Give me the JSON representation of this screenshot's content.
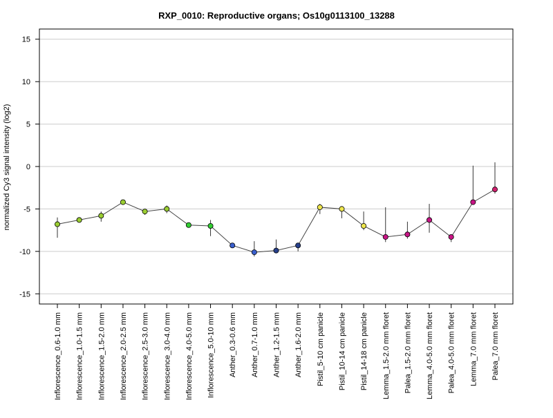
{
  "chart_data": {
    "type": "line",
    "title": "RXP_0010: Reproductive organs; Os10g0113100_13288",
    "xlabel": "",
    "ylabel": "normalized Cy3 signal intensity (log2)",
    "ylim": [
      -16.2,
      16.2
    ],
    "yticks": [
      15,
      10,
      5,
      0,
      -5,
      -10,
      -15
    ],
    "ytick_labels": [
      "15",
      "10",
      "5",
      "0",
      "-5",
      "-10",
      "-15"
    ],
    "grid": true,
    "legend": "none",
    "categories": [
      "Inflorescence_0.6-1.0 mm",
      "Inflorescence_1.0-1.5 mm",
      "Inflorescence_1.5-2.0 mm",
      "Inflorescence_2.0-2.5 mm",
      "Inflorescence_2.5-3.0 mm",
      "Inflorescence_3.0-4.0 mm",
      "Inflorescence_4.0-5.0 mm",
      "Inflorescence_5.0-10 mm",
      "Anther_0.3-0.6 mm",
      "Anther_0.7-1.0 mm",
      "Anther_1.2-1.5 mm",
      "Anther_1.6-2.0 mm",
      "Pistil_5-10 cm panicle",
      "Pistil_10-14 cm panicle",
      "Pistil_14-18 cm panicle",
      "Lemma_1.5-2.0 mm floret",
      "Palea_1.5-2.0 mm floret",
      "Lemma_4.0-5.0 mm floret",
      "Palea_4.0-5.0 mm floret",
      "Lemma_7.0 mm floret",
      "Palea_7.0 mm floret"
    ],
    "series": [
      {
        "values": [
          -6.8,
          -6.3,
          -5.8,
          -4.2,
          -5.3,
          -5.0,
          -6.9,
          -7.0,
          -9.3,
          -10.1,
          -9.9,
          -9.3,
          -4.8,
          -5.0,
          -7.0,
          -8.3,
          -8.0,
          -6.3,
          -8.3,
          -4.2,
          -2.7
        ],
        "err_low": [
          -8.4,
          -6.6,
          -6.5,
          -4.4,
          -5.7,
          -5.5,
          -7.0,
          -8.2,
          -9.4,
          -10.6,
          -10.1,
          -10.0,
          -5.6,
          -6.1,
          -7.5,
          -8.9,
          -8.5,
          -7.8,
          -8.9,
          -4.2,
          -3.2
        ],
        "err_high": [
          -6.0,
          -6.0,
          -5.3,
          -4.1,
          -5.0,
          -4.6,
          -6.8,
          -6.3,
          -9.2,
          -8.8,
          -8.6,
          -9.1,
          -4.4,
          -4.8,
          -5.3,
          -4.8,
          -6.5,
          -4.4,
          -8.2,
          0.1,
          0.5
        ],
        "point_colors": [
          "#9acd32",
          "#9acd32",
          "#9acd32",
          "#9acd32",
          "#9acd32",
          "#9acd32",
          "#32cd32",
          "#32cd32",
          "#3a5fcd",
          "#3a5fcd",
          "#27408b",
          "#27408b",
          "#eee64d",
          "#eee64d",
          "#eee64d",
          "#c71585",
          "#c71585",
          "#c71585",
          "#c71585",
          "#c71585",
          "#d0206e"
        ]
      }
    ]
  }
}
